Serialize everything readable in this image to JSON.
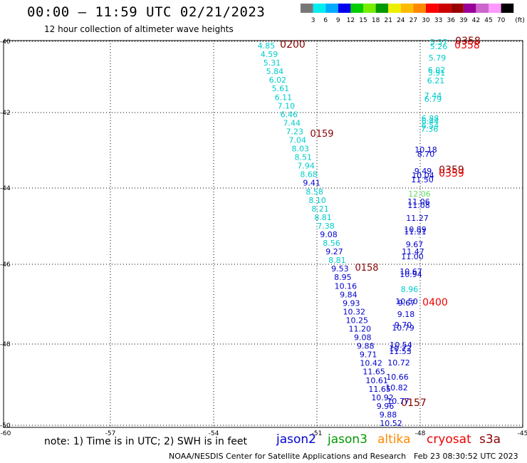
{
  "header": {
    "title": "00:00 – 11:59 UTC 02/21/2023",
    "subtitle": "12 hour collection of altimeter wave heights"
  },
  "colorbar": {
    "ticks": [
      "3",
      "6",
      "9",
      "12",
      "15",
      "18",
      "21",
      "24",
      "27",
      "30",
      "33",
      "36",
      "39",
      "42",
      "45",
      "70"
    ],
    "unit": "(ft)",
    "colors": [
      "#777777",
      "#00eeee",
      "#00aaff",
      "#0000ee",
      "#00cc00",
      "#77ee00",
      "#009900",
      "#eeee00",
      "#ffbb00",
      "#ff8800",
      "#ff0000",
      "#cc0000",
      "#990000",
      "#990099",
      "#cc66cc",
      "#ff99ff",
      "#000000"
    ]
  },
  "axes": {
    "lon_ticks": [
      "-60",
      "-57",
      "-54",
      "-51",
      "-48",
      "-45"
    ],
    "lat_ticks": [
      "-40",
      "-42",
      "-44",
      "-46",
      "-48",
      "-50"
    ]
  },
  "satellites": {
    "jason3_color": "#00cccc",
    "jason2_color": "#0000cc",
    "time_color": "#880000",
    "time_color2": "#ee0000"
  },
  "track_a": {
    "values": [
      "4.85",
      "4.59",
      "5.31",
      "5.84",
      "6.02",
      "5.61",
      "6.11",
      "7.10",
      "6.46",
      "7.44",
      "7.23",
      "7.04",
      "8.03",
      "8.51",
      "7.94",
      "8.68",
      "9.41",
      "8.58",
      "8.10",
      "8.21",
      "8.81",
      "7.38",
      "9.08",
      "8.56",
      "9.27",
      "8.81",
      "9.53",
      "8.95",
      "10.16",
      "9.84",
      "9.93",
      "10.32",
      "10.25",
      "11.20",
      "9.08",
      "9.88",
      "9.71",
      "10.42",
      "11.65",
      "10.61",
      "11.65",
      "10.92",
      "9.96",
      "9.88",
      "10.52"
    ],
    "times": [
      "0200",
      "0159",
      "0158",
      "0157"
    ]
  },
  "track_b": {
    "values": [
      "5.37",
      "5.26",
      "5.79",
      "6.02",
      "5.91",
      "6.21",
      "7.44",
      "6.79",
      "6.88",
      "6.44",
      "6.54",
      "7.36",
      "10.18",
      "8.70",
      "9.49",
      "10.04",
      "11.50",
      "12.06",
      "11.06",
      "11.08",
      "11.27",
      "10.89",
      "11.91",
      "9.67",
      "11.47",
      "11.00",
      "10.67",
      "10.94",
      "8.96",
      "10.50",
      "9.67",
      "9.18",
      "9.70",
      "10.79",
      "10.54",
      "10.72",
      "11.53",
      "10.72",
      "10.66",
      "10.82",
      "10.77"
    ],
    "times": [
      "0358",
      "0358",
      "0359",
      "0359",
      "0400"
    ]
  },
  "note": "note: 1) Time is in UTC; 2) SWH is in feet",
  "legend": [
    {
      "name": "jason2",
      "color": "#0000cc"
    },
    {
      "name": "jason3",
      "color": "#009900"
    },
    {
      "name": "altika",
      "color": "#ff8800"
    },
    {
      "name": "cryosat",
      "color": "#ee0000"
    },
    {
      "name": "s3a",
      "color": "#880000"
    }
  ],
  "credit": "NOAA/NESDIS Center for Satellite Applications and Research",
  "timestamp": "Feb 23 08:30:52 UTC 2023"
}
